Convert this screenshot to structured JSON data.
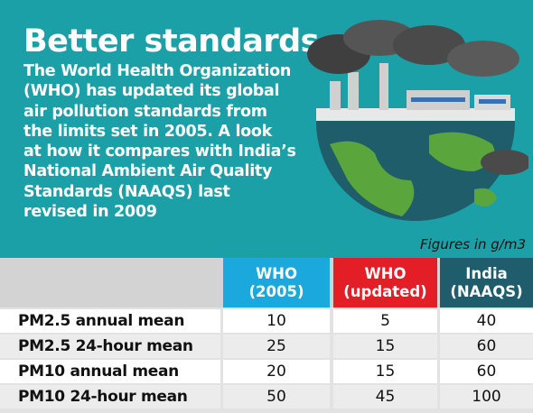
{
  "header": {
    "title": "Better standards",
    "description": [
      "The World Health Organization",
      "(WHO) has updated its global",
      "air pollution standards from",
      "the limits set in 2005. A look",
      "at how it compares with India’s",
      "National Ambient Air Quality",
      "Standards (NAAQS) last",
      "revised in 2009"
    ]
  },
  "note": "Figures in g/m3",
  "table": {
    "columns": [
      {
        "lines": [
          "WHO",
          "(2005)"
        ],
        "color": "#1ba8dc"
      },
      {
        "lines": [
          "WHO",
          "(updated)"
        ],
        "color": "#e31e26"
      },
      {
        "lines": [
          "India",
          "(NAAQS)"
        ],
        "color": "#1f5c6c"
      }
    ],
    "rows": [
      [
        "PM2.5 annual mean",
        10,
        5,
        40
      ],
      [
        "PM2.5 24-hour mean",
        25,
        15,
        60
      ],
      [
        "PM10 annual mean",
        20,
        15,
        60
      ],
      [
        "PM10 24-hour mean",
        50,
        45,
        100
      ]
    ]
  }
}
